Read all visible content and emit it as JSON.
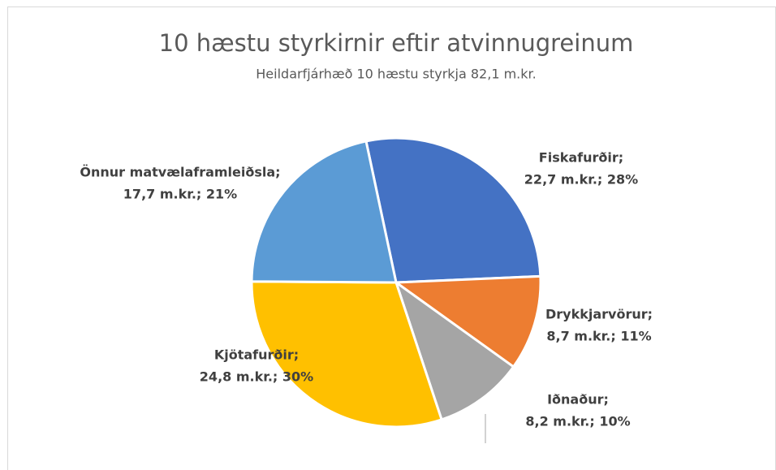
{
  "chart_data": {
    "type": "pie",
    "title": "10 hæstu styrkirnir eftir atvinnugreinum",
    "subtitle": "Heildarfjárhæð 10 hæstu styrkja 82,1 m.kr.",
    "categories": [
      "Fiskafurðir;",
      "Drykkjarvörur;",
      "Iðnaður;",
      "Kjötafurðir;",
      "Önnur matvælaframleiðsla;"
    ],
    "values": [
      22.7,
      8.7,
      8.2,
      24.8,
      17.7
    ],
    "value_labels": [
      "22,7 m.kr.; 28%",
      "8,7 m.kr.; 11%",
      "8,2 m.kr.; 10%",
      "24,8 m.kr.; 30%",
      "17,7 m.kr.; 21%"
    ],
    "colors": [
      "#4472c4",
      "#ed7d31",
      "#a5a5a5",
      "#ffc000",
      "#5b9bd5"
    ]
  }
}
